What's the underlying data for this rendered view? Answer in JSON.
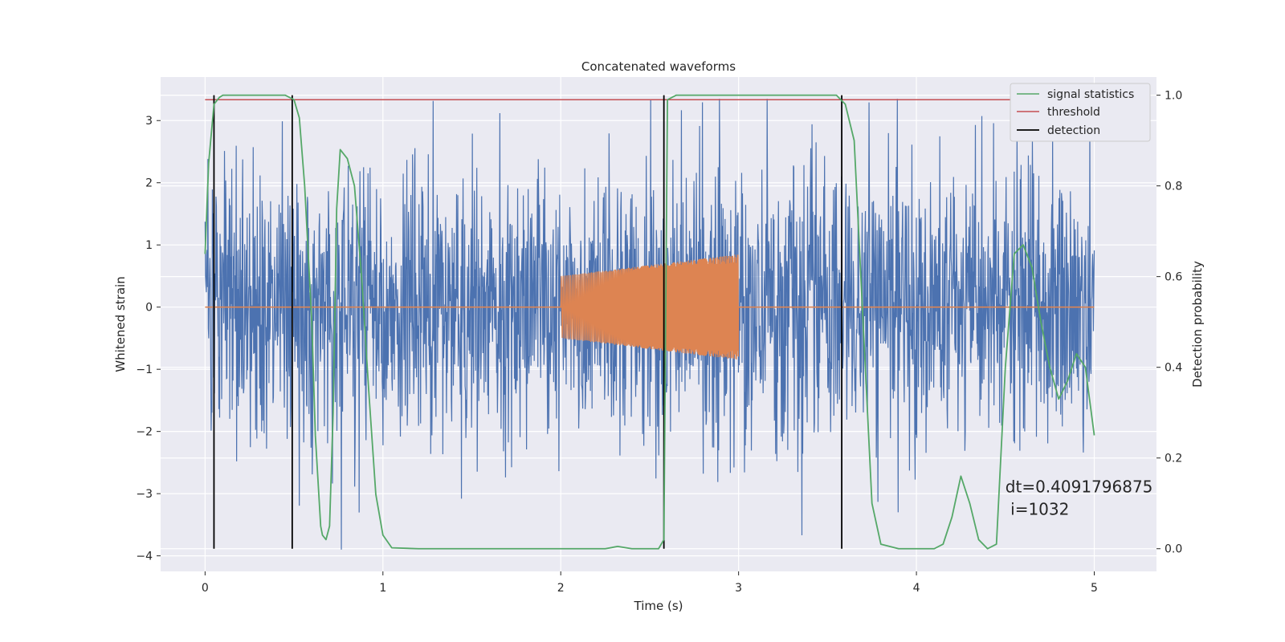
{
  "chart_data": {
    "type": "line",
    "title": "Concatenated waveforms",
    "xlabel": "Time (s)",
    "ylabel": "Whitened strain",
    "y2label": "Detection probability",
    "xlim": [
      -0.25,
      5.35
    ],
    "ylim": [
      -4.25,
      3.7
    ],
    "y2lim": [
      -0.05,
      1.04
    ],
    "xticks": [
      "0",
      "1",
      "2",
      "3",
      "4",
      "5"
    ],
    "xtick_values": [
      0,
      1,
      2,
      3,
      4,
      5
    ],
    "yticks": [
      "−4",
      "−3",
      "−2",
      "−1",
      "0",
      "1",
      "2",
      "3"
    ],
    "ytick_values": [
      -4,
      -3,
      -2,
      -1,
      0,
      1,
      2,
      3
    ],
    "y2ticks": [
      "0.0",
      "0.2",
      "0.4",
      "0.6",
      "0.8",
      "1.0"
    ],
    "y2tick_values": [
      0.0,
      0.2,
      0.4,
      0.6,
      0.8,
      1.0
    ],
    "grid": true,
    "legend_position": "top-right",
    "colors": {
      "strain": "#4c72b0",
      "injection": "#dd8452",
      "signal_statistics": "#55a868",
      "threshold": "#c44e52",
      "detection": "#000000",
      "background": "#eaeaf2",
      "grid": "#ffffff"
    },
    "series": [
      {
        "name": "",
        "axis": "left",
        "kind": "noise",
        "x_range": [
          0,
          5
        ],
        "amplitude": 1.1,
        "range": [
          -3.9,
          3.35
        ]
      },
      {
        "name": "",
        "axis": "left",
        "kind": "chirp",
        "x_range": [
          2.0,
          3.0
        ],
        "amplitude_start": 0.5,
        "amplitude_end": 0.85
      },
      {
        "name": "signal statistics",
        "axis": "right",
        "x": [
          0.0,
          0.02,
          0.05,
          0.08,
          0.1,
          0.2,
          0.3,
          0.45,
          0.5,
          0.53,
          0.56,
          0.6,
          0.62,
          0.65,
          0.66,
          0.68,
          0.7,
          0.72,
          0.74,
          0.76,
          0.78,
          0.8,
          0.84,
          0.88,
          0.92,
          0.96,
          1.0,
          1.05,
          1.2,
          1.5,
          2.0,
          2.25,
          2.32,
          2.4,
          2.5,
          2.55,
          2.58,
          2.6,
          2.65,
          2.8,
          3.0,
          3.3,
          3.55,
          3.6,
          3.65,
          3.7,
          3.75,
          3.8,
          3.9,
          4.0,
          4.1,
          4.15,
          4.2,
          4.25,
          4.3,
          4.35,
          4.4,
          4.45,
          4.5,
          4.55,
          4.6,
          4.65,
          4.7,
          4.75,
          4.8,
          4.85,
          4.9,
          4.95,
          5.0
        ],
        "values": [
          0.65,
          0.85,
          0.98,
          0.995,
          1.0,
          1.0,
          1.0,
          1.0,
          0.99,
          0.95,
          0.8,
          0.5,
          0.25,
          0.05,
          0.03,
          0.02,
          0.05,
          0.3,
          0.75,
          0.88,
          0.87,
          0.86,
          0.8,
          0.6,
          0.35,
          0.12,
          0.03,
          0.002,
          0.0,
          0.0,
          0.0,
          0.0,
          0.005,
          0.0,
          0.0,
          0.0,
          0.02,
          0.99,
          1.0,
          1.0,
          1.0,
          1.0,
          1.0,
          0.98,
          0.9,
          0.5,
          0.1,
          0.01,
          0.0,
          0.0,
          0.0,
          0.01,
          0.07,
          0.16,
          0.1,
          0.02,
          0.0,
          0.01,
          0.4,
          0.65,
          0.67,
          0.62,
          0.5,
          0.4,
          0.33,
          0.37,
          0.43,
          0.4,
          0.25
        ]
      },
      {
        "name": "threshold",
        "axis": "right",
        "x": [
          0,
          5
        ],
        "values": [
          0.99,
          0.99
        ]
      },
      {
        "name": "detection",
        "axis": "right",
        "kind": "vlines",
        "x": [
          0.05,
          0.49,
          2.58,
          3.58
        ],
        "range": [
          0.0,
          1.0
        ]
      }
    ],
    "annotation": {
      "line1": "dt=0.4091796875",
      "line2": " i=1032",
      "x": 4.5,
      "y": 0.11
    }
  }
}
